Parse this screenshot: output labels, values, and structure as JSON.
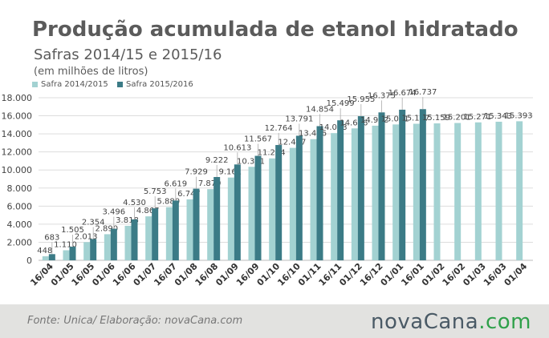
{
  "header": {
    "title": "Produção acumulada de etanol hidratado",
    "subtitle": "Safras 2014/15 e 2015/16",
    "unit": "(em milhões de litros)"
  },
  "colors": {
    "series1": "#a3d2d2",
    "series2": "#3b7b86",
    "grid": "#dddddd",
    "axis": "#bbbbbb",
    "text": "#444444"
  },
  "footer": {
    "source": "Fonte:  Unica/  Elaboração:  novaCana.com",
    "brand_part1": "novaCana",
    "brand_part2": ".com"
  },
  "chart_data": {
    "type": "bar",
    "categories": [
      "16/04",
      "01/05",
      "16/05",
      "01/06",
      "16/06",
      "01/07",
      "16/07",
      "01/08",
      "16/08",
      "01/09",
      "16/09",
      "01/10",
      "16/10",
      "01/11",
      "16/11",
      "01/12",
      "16/12",
      "01/01",
      "16/01",
      "01/02",
      "16/02",
      "01/03",
      "16/03",
      "01/04"
    ],
    "series": [
      {
        "name": "Safra 2014/2015",
        "values": [
          448,
          1110,
          2013,
          2890,
          3818,
          4867,
          5880,
          6747,
          7879,
          9161,
          10351,
          11284,
          12447,
          13416,
          14083,
          14606,
          14902,
          15041,
          15117,
          15159,
          15201,
          15271,
          15343,
          15393
        ],
        "labels": [
          "448",
          "1.110",
          "2.013",
          "2.890",
          "3.818",
          "4.867",
          "5.880",
          "6.747",
          "7.879",
          "9.161",
          "10.351",
          "11.284",
          "12.447",
          "13.416",
          "14.083",
          "14.606",
          "14.902",
          "15.041",
          "15.117",
          "15.159",
          "15.201",
          "15.271",
          "15.343",
          "15.393"
        ]
      },
      {
        "name": "Safra 2015/2016",
        "values": [
          683,
          1505,
          2354,
          3496,
          4530,
          5753,
          6619,
          7929,
          9222,
          10613,
          11567,
          12764,
          13791,
          14854,
          15499,
          15955,
          16375,
          16674,
          16737,
          null,
          null,
          null,
          null,
          null
        ],
        "labels": [
          "683",
          "1.505",
          "2.354",
          "3.496",
          "4.530",
          "5.753",
          "6.619",
          "7.929",
          "9.222",
          "10.613",
          "11.567",
          "12.764",
          "13.791",
          "14.854",
          "15.499",
          "15.955",
          "16.375",
          "16.674",
          "16.737",
          "",
          "",
          "",
          "",
          ""
        ]
      }
    ],
    "y_ticks": [
      "0",
      "2.000",
      "4.000",
      "6.000",
      "8.000",
      "10.000",
      "12.000",
      "14.000",
      "16.000",
      "18.000"
    ],
    "ylim": [
      0,
      18000
    ],
    "grid": true,
    "legend": "top-left"
  }
}
